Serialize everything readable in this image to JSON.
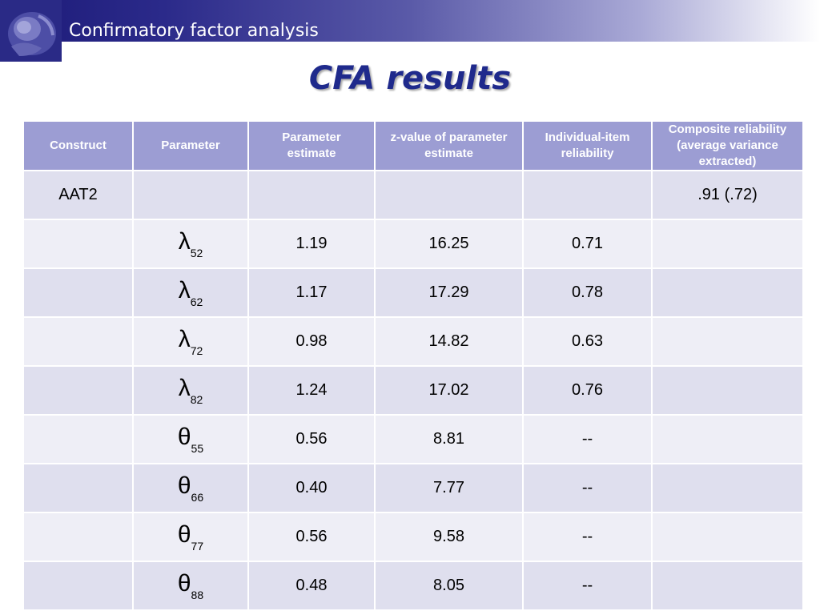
{
  "header": {
    "title": "Confirmatory factor analysis"
  },
  "slide": {
    "title": "CFA results"
  },
  "table": {
    "columns": [
      "Construct",
      "Parameter",
      "Parameter estimate",
      "z-value of parameter estimate",
      "Individual-item reliability",
      "Composite reliability (average variance extracted)"
    ],
    "rows": [
      {
        "construct": "AAT2",
        "symbol": "",
        "sub": "",
        "estimate": "",
        "z": "",
        "reliability": "",
        "composite": ".91 (.72)"
      },
      {
        "construct": "",
        "symbol": "λ",
        "sub": "52",
        "estimate": "1.19",
        "z": "16.25",
        "reliability": "0.71",
        "composite": ""
      },
      {
        "construct": "",
        "symbol": "λ",
        "sub": "62",
        "estimate": "1.17",
        "z": "17.29",
        "reliability": "0.78",
        "composite": ""
      },
      {
        "construct": "",
        "symbol": "λ",
        "sub": "72",
        "estimate": "0.98",
        "z": "14.82",
        "reliability": "0.63",
        "composite": ""
      },
      {
        "construct": "",
        "symbol": "λ",
        "sub": "82",
        "estimate": "1.24",
        "z": "17.02",
        "reliability": "0.76",
        "composite": ""
      },
      {
        "construct": "",
        "symbol": "θ",
        "sub": "55",
        "estimate": "0.56",
        "z": "8.81",
        "reliability": "--",
        "composite": ""
      },
      {
        "construct": "",
        "symbol": "θ",
        "sub": "66",
        "estimate": "0.40",
        "z": "7.77",
        "reliability": "--",
        "composite": ""
      },
      {
        "construct": "",
        "symbol": "θ",
        "sub": "77",
        "estimate": "0.56",
        "z": "9.58",
        "reliability": "--",
        "composite": ""
      },
      {
        "construct": "",
        "symbol": "θ",
        "sub": "88",
        "estimate": "0.48",
        "z": "8.05",
        "reliability": "--",
        "composite": ""
      }
    ]
  }
}
